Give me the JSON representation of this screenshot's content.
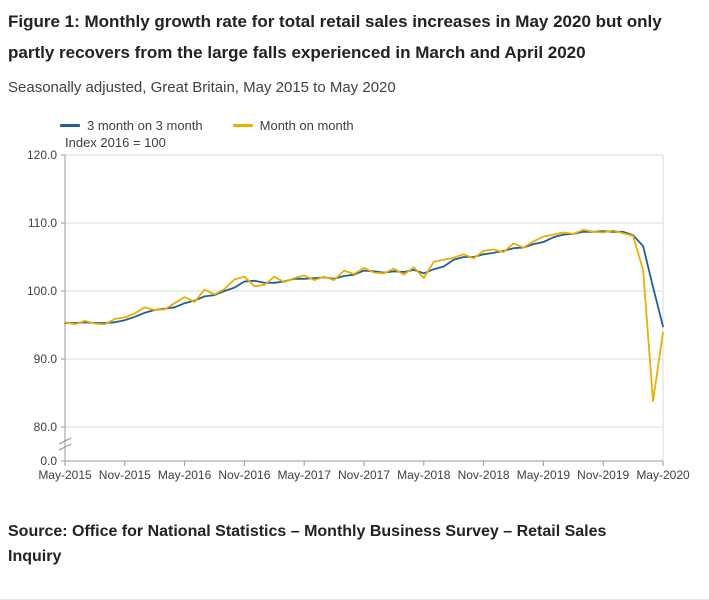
{
  "header": {
    "title": "Figure 1: Monthly growth rate for total retail sales increases in May 2020 but only partly recovers from the large falls experienced in March and April 2020",
    "subtitle": "Seasonally adjusted, Great Britain, May 2015 to May 2020"
  },
  "chart_data": {
    "type": "line",
    "index_label": "Index 2016 = 100",
    "legend_position": "top-left",
    "grid": true,
    "grid_color": "#d9d9d9",
    "axis_color": "#9b9b9b",
    "text_color": "#414042",
    "y_ticks": [
      0,
      80,
      90,
      100,
      110,
      120
    ],
    "ylim_main": [
      80,
      120
    ],
    "y_axis_break": true,
    "x_tick_labels": [
      "May-2015",
      "Nov-2015",
      "May-2016",
      "Nov-2016",
      "May-2017",
      "Nov-2017",
      "May-2018",
      "Nov-2018",
      "May-2019",
      "Nov-2019",
      "May-2020"
    ],
    "x_unit": "month",
    "x_range": "May 2015 to May 2020",
    "series": [
      {
        "name": "3 month on 3 month",
        "color": "#206095",
        "values": [
          95.3,
          95.3,
          95.4,
          95.3,
          95.3,
          95.4,
          95.7,
          96.2,
          96.8,
          97.2,
          97.4,
          97.6,
          98.2,
          98.6,
          99.2,
          99.4,
          100.0,
          100.5,
          101.4,
          101.5,
          101.2,
          101.2,
          101.4,
          101.8,
          101.8,
          101.9,
          102.0,
          101.8,
          102.2,
          102.4,
          103.0,
          102.9,
          102.7,
          102.9,
          102.8,
          103.1,
          102.6,
          103.2,
          103.6,
          104.6,
          105.0,
          105.0,
          105.4,
          105.6,
          105.9,
          106.3,
          106.4,
          106.9,
          107.2,
          107.9,
          108.3,
          108.4,
          108.7,
          108.7,
          108.8,
          108.7,
          108.7,
          108.2,
          106.6,
          100.6,
          94.8
        ]
      },
      {
        "name": "Month on month",
        "color": "#e9b000",
        "values": [
          95.4,
          95.1,
          95.6,
          95.2,
          95.1,
          95.9,
          96.1,
          96.7,
          97.6,
          97.2,
          97.3,
          98.2,
          99.1,
          98.4,
          100.2,
          99.5,
          100.3,
          101.7,
          102.1,
          100.7,
          100.9,
          102.1,
          101.3,
          101.9,
          102.3,
          101.6,
          102.1,
          101.6,
          103.0,
          102.5,
          103.4,
          102.7,
          102.6,
          103.3,
          102.4,
          103.5,
          101.9,
          104.3,
          104.6,
          104.9,
          105.4,
          104.8,
          105.9,
          106.1,
          105.7,
          107.0,
          106.4,
          107.3,
          108.0,
          108.3,
          108.6,
          108.4,
          109.0,
          108.7,
          108.6,
          108.9,
          108.5,
          108.1,
          103.1,
          83.8,
          93.9
        ]
      }
    ]
  },
  "source": {
    "text": "Source: Office for National Statistics – Monthly Business Survey – Retail Sales Inquiry"
  }
}
